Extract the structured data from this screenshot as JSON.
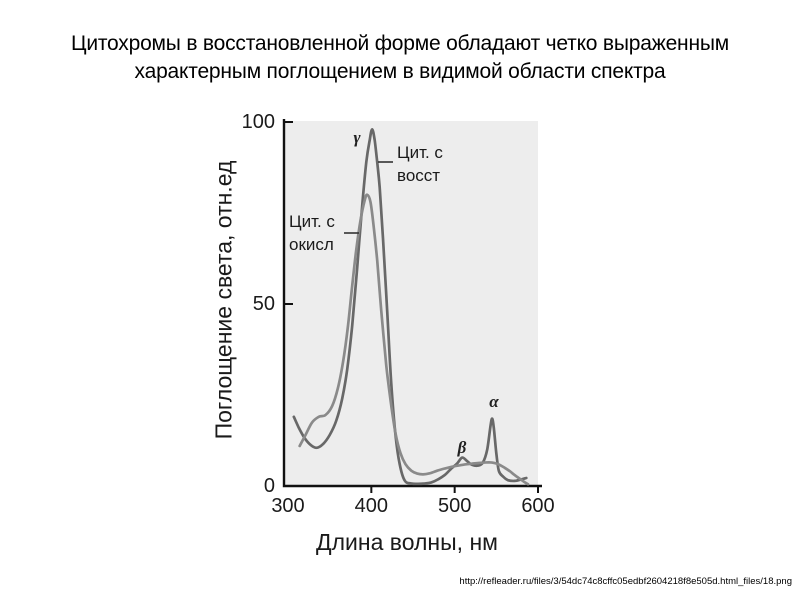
{
  "slide": {
    "title_line1": "Цитохромы в восстановленной форме обладают четко выраженным",
    "title_line2": "характерным поглощением в видимой области спектра",
    "source_url": "http://refleader.ru/files/3/54dc74c8cffc05edbf2604218f8e505d.html_files/18.png"
  },
  "chart_data": {
    "type": "line",
    "title": "",
    "xlabel": "Длина волны, нм",
    "ylabel": "Поглощение света, отн.ед",
    "xlim": [
      300,
      600
    ],
    "ylim": [
      0,
      100
    ],
    "x_ticks": [
      300,
      400,
      500,
      600
    ],
    "y_ticks": [
      0,
      50,
      100
    ],
    "grid": false,
    "legend_position": "inline-annotations",
    "plot_bg": "#ededed",
    "axis_color": "#111111",
    "peak_labels": [
      {
        "text": "γ",
        "at_nm": 402
      },
      {
        "text": "β",
        "at_nm": 509
      },
      {
        "text": "α",
        "at_nm": 545
      }
    ],
    "annotations": [
      {
        "line1": "Цит. с",
        "line2": "восст"
      },
      {
        "line1": "Цит. с",
        "line2": "окисл"
      }
    ],
    "series": [
      {
        "name": "Цит. с восст",
        "color": "#686868",
        "points": [
          [
            307,
            19
          ],
          [
            313,
            16
          ],
          [
            319,
            13.5
          ],
          [
            326,
            11.5
          ],
          [
            334,
            10.5
          ],
          [
            342,
            11.5
          ],
          [
            350,
            14
          ],
          [
            358,
            18
          ],
          [
            365,
            24
          ],
          [
            371,
            32
          ],
          [
            377,
            44
          ],
          [
            383,
            60
          ],
          [
            389,
            77
          ],
          [
            394,
            89
          ],
          [
            398,
            95
          ],
          [
            401,
            98
          ],
          [
            404,
            95
          ],
          [
            407,
            89
          ],
          [
            410,
            82
          ],
          [
            414,
            68
          ],
          [
            419,
            48
          ],
          [
            424,
            28
          ],
          [
            429,
            14
          ],
          [
            434,
            6
          ],
          [
            440,
            1.5
          ],
          [
            448,
            0.7
          ],
          [
            456,
            0.6
          ],
          [
            464,
            0.7
          ],
          [
            472,
            1
          ],
          [
            480,
            1.8
          ],
          [
            488,
            3
          ],
          [
            496,
            4.8
          ],
          [
            503,
            6.2
          ],
          [
            509,
            7.8
          ],
          [
            515,
            6.8
          ],
          [
            521,
            5.8
          ],
          [
            528,
            5.6
          ],
          [
            534,
            6.5
          ],
          [
            539,
            10
          ],
          [
            543,
            16.5
          ],
          [
            545,
            18.5
          ],
          [
            547,
            16
          ],
          [
            550,
            9
          ],
          [
            553,
            4.2
          ],
          [
            558,
            2.6
          ],
          [
            564,
            1.6
          ],
          [
            572,
            1.4
          ],
          [
            580,
            1.8
          ],
          [
            586,
            2.2
          ]
        ]
      },
      {
        "name": "Цит. с окисл",
        "color": "#8a8a8a",
        "points": [
          [
            314,
            11
          ],
          [
            321,
            14
          ],
          [
            329,
            17.5
          ],
          [
            337,
            19
          ],
          [
            345,
            19.5
          ],
          [
            353,
            22
          ],
          [
            360,
            27
          ],
          [
            366,
            34
          ],
          [
            372,
            44
          ],
          [
            377,
            55
          ],
          [
            382,
            65
          ],
          [
            387,
            73
          ],
          [
            392,
            78.5
          ],
          [
            395,
            80
          ],
          [
            399,
            78
          ],
          [
            403,
            71
          ],
          [
            407,
            62
          ],
          [
            412,
            48
          ],
          [
            418,
            33
          ],
          [
            424,
            22
          ],
          [
            429,
            14.5
          ],
          [
            435,
            9
          ],
          [
            441,
            6
          ],
          [
            448,
            4.2
          ],
          [
            455,
            3.4
          ],
          [
            462,
            3.2
          ],
          [
            470,
            3.5
          ],
          [
            479,
            4.2
          ],
          [
            488,
            4.8
          ],
          [
            497,
            5.3
          ],
          [
            506,
            5.7
          ],
          [
            515,
            6
          ],
          [
            524,
            6.2
          ],
          [
            533,
            6.4
          ],
          [
            541,
            6.5
          ],
          [
            548,
            6.3
          ],
          [
            554,
            5.8
          ],
          [
            560,
            5
          ],
          [
            566,
            4.1
          ],
          [
            572,
            3
          ],
          [
            578,
            2
          ],
          [
            583,
            1.2
          ],
          [
            588,
            0.5
          ]
        ]
      }
    ]
  }
}
